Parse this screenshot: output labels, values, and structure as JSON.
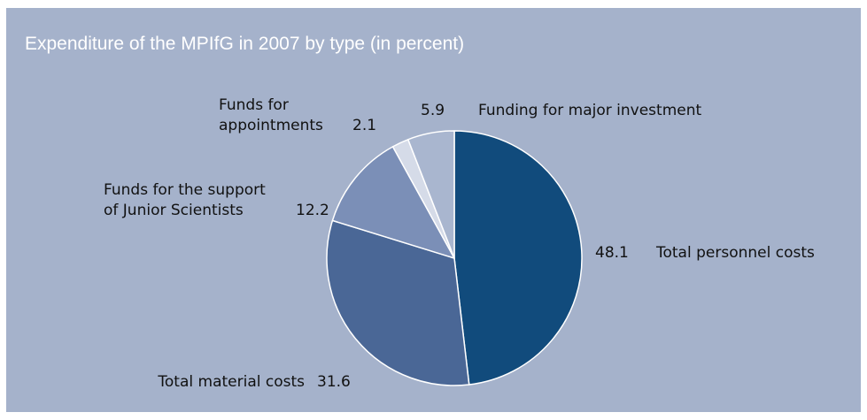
{
  "chart_data": {
    "type": "pie",
    "title": "Expenditure of the MPIfG in 2007 by type (in percent)",
    "slices": [
      {
        "label_lines": [
          "Total personnel costs"
        ],
        "value": 48.1,
        "value_text": "48.1",
        "color": "#114b7c"
      },
      {
        "label_lines": [
          "Total material costs"
        ],
        "value": 31.6,
        "value_text": "31.6",
        "color": "#4a6796"
      },
      {
        "label_lines": [
          "Funds for the support",
          "of Junior Scientists"
        ],
        "value": 12.2,
        "value_text": "12.2",
        "color": "#7b8fb7"
      },
      {
        "label_lines": [
          "Funds for",
          "appointments"
        ],
        "value": 2.1,
        "value_text": "2.1",
        "color": "#d5dbe8"
      },
      {
        "label_lines": [
          "Funding for major investment"
        ],
        "value": 5.9,
        "value_text": "5.9",
        "color": "#a9b6cf"
      }
    ],
    "start_angle": "12 o'clock",
    "direction": "clockwise",
    "slice_border_color": "#ffffff",
    "legend": "none (direct labels)",
    "background_color": "#a5b2cb",
    "title_color": "#ffffff"
  }
}
